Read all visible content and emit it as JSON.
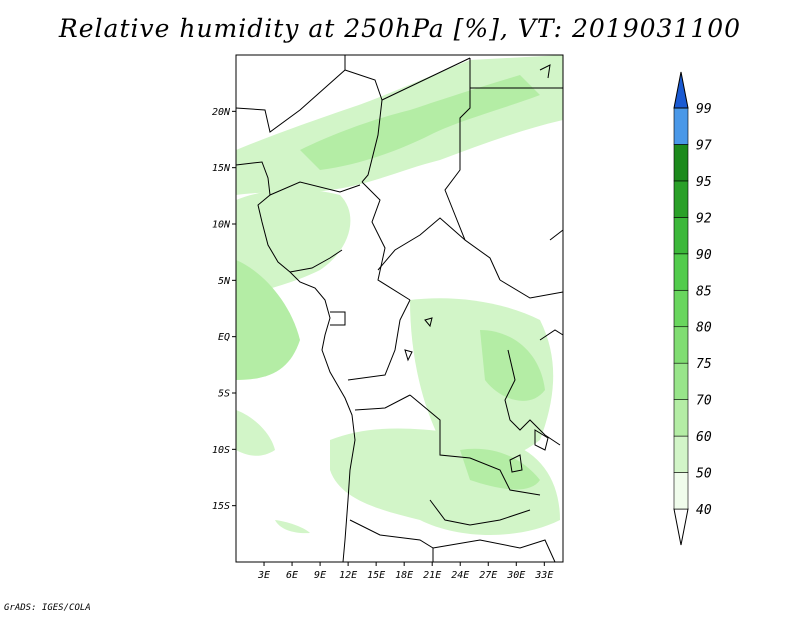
{
  "title": "Relative humidity at 250hPa [%], VT: 2019031100",
  "credit": "GrADS: IGES/COLA",
  "map": {
    "lon_range": [
      0,
      35
    ],
    "lat_range": [
      -20,
      25
    ],
    "y_ticks": [
      "20N",
      "15N",
      "10N",
      "5N",
      "EQ",
      "5S",
      "10S",
      "15S"
    ],
    "x_ticks": [
      "3E",
      "6E",
      "9E",
      "12E",
      "15E",
      "18E",
      "21E",
      "24E",
      "27E",
      "30E",
      "33E"
    ]
  },
  "colorbar": {
    "labels": [
      "40",
      "50",
      "60",
      "70",
      "75",
      "80",
      "85",
      "90",
      "92",
      "95",
      "97",
      "99"
    ],
    "colors": [
      "#f0fcec",
      "#d2f5c8",
      "#b4eda5",
      "#98e58a",
      "#80dd72",
      "#69d65e",
      "#52cc4c",
      "#3cb83a",
      "#2aa028",
      "#1c8a1c",
      "#4a98e8",
      "#2a78dc",
      "#1a5ad2"
    ]
  }
}
